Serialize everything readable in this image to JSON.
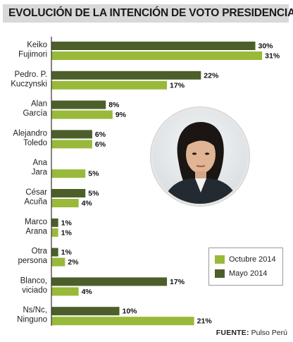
{
  "colors": {
    "octubre": "#98b93a",
    "mayo": "#4c5f2a",
    "axis": "#333333"
  },
  "chart_data": {
    "type": "bar",
    "orientation": "horizontal",
    "title": "EVOLUCIÓN DE LA INTENCIÓN DE VOTO PRESIDENCIAL",
    "categories": [
      [
        "Keiko",
        "Fujimori"
      ],
      [
        "Pedro. P.",
        "Kuczynski"
      ],
      [
        "Alan",
        "García"
      ],
      [
        "Alejandro",
        "Toledo"
      ],
      [
        "Ana",
        "Jara"
      ],
      [
        "César",
        "Acuña"
      ],
      [
        "Marco",
        "Arana"
      ],
      [
        "Otra",
        "persona"
      ],
      [
        "Blanco,",
        "viciado"
      ],
      [
        "Ns/Nc,",
        "Ninguno"
      ]
    ],
    "series": [
      {
        "name": "Mayo 2014",
        "values": [
          30,
          22,
          8,
          6,
          null,
          5,
          1,
          1,
          17,
          10
        ]
      },
      {
        "name": "Octubre 2014",
        "values": [
          31,
          17,
          9,
          6,
          5,
          4,
          1,
          2,
          4,
          21
        ]
      }
    ],
    "value_suffix": "%",
    "xlim": [
      0,
      31
    ],
    "legend": {
      "placement": "bottom-right",
      "order": [
        "Octubre 2014",
        "Mayo 2014"
      ]
    },
    "grid": false
  },
  "legend": {
    "octubre_label": "Octubre 2014",
    "mayo_label": "Mayo 2014"
  },
  "footer": {
    "label": "FUENTE:",
    "source": "Pulso Perú"
  },
  "photo": {
    "icon": "portrait-photo"
  }
}
